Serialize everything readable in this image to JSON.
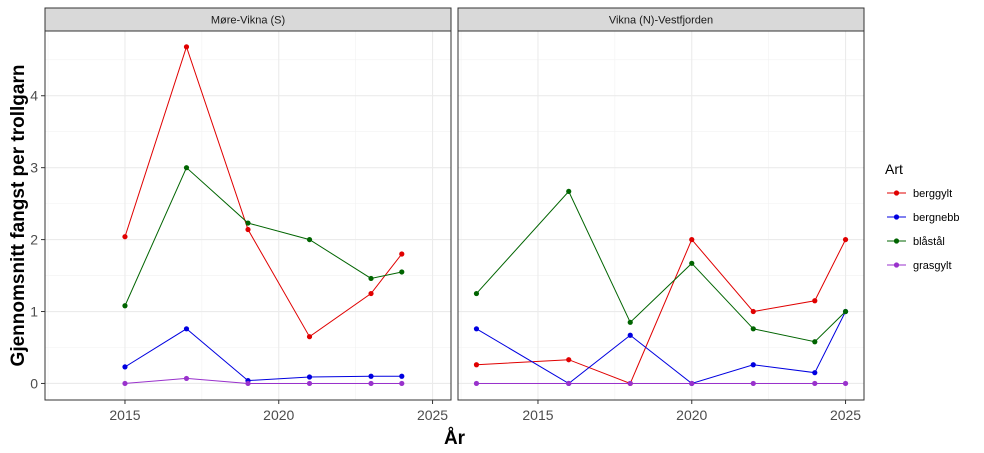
{
  "chart_data": {
    "type": "line",
    "facets": [
      {
        "title": "Møre-Vikna (S)",
        "series": [
          {
            "name": "berggylt",
            "color": "#e00000",
            "x": [
              2015,
              2017,
              2019,
              2021,
              2023,
              2024
            ],
            "y": [
              2.04,
              4.68,
              2.14,
              0.65,
              1.25,
              1.8
            ]
          },
          {
            "name": "bergnebb",
            "color": "#0000e0",
            "x": [
              2015,
              2017,
              2019,
              2021,
              2023,
              2024
            ],
            "y": [
              0.23,
              0.76,
              0.04,
              0.09,
              0.1,
              0.1
            ]
          },
          {
            "name": "blåstål",
            "color": "#006400",
            "x": [
              2015,
              2017,
              2019,
              2021,
              2023,
              2024
            ],
            "y": [
              1.08,
              3.0,
              2.23,
              2.0,
              1.46,
              1.55
            ]
          },
          {
            "name": "grasgylt",
            "color": "#9932cc",
            "x": [
              2015,
              2017,
              2019,
              2021,
              2023,
              2024
            ],
            "y": [
              0.0,
              0.07,
              0.0,
              0.0,
              0.0,
              0.0
            ]
          }
        ]
      },
      {
        "title": "Vikna (N)-Vestfjorden",
        "series": [
          {
            "name": "berggylt",
            "color": "#e00000",
            "x": [
              2013,
              2016,
              2018,
              2020,
              2022,
              2024,
              2025
            ],
            "y": [
              0.26,
              0.33,
              0.0,
              2.0,
              1.0,
              1.15,
              2.0
            ]
          },
          {
            "name": "bergnebb",
            "color": "#0000e0",
            "x": [
              2013,
              2016,
              2018,
              2020,
              2022,
              2024,
              2025
            ],
            "y": [
              0.76,
              0.0,
              0.67,
              0.0,
              0.26,
              0.15,
              1.0
            ]
          },
          {
            "name": "blåstål",
            "color": "#006400",
            "x": [
              2013,
              2016,
              2018,
              2020,
              2022,
              2024,
              2025
            ],
            "y": [
              1.25,
              2.67,
              0.85,
              1.67,
              0.76,
              0.58,
              1.0
            ]
          },
          {
            "name": "grasgylt",
            "color": "#9932cc",
            "x": [
              2013,
              2016,
              2018,
              2020,
              2022,
              2024,
              2025
            ],
            "y": [
              0.0,
              0.0,
              0.0,
              0.0,
              0.0,
              0.0,
              0.0
            ]
          }
        ]
      }
    ],
    "xlabel": "År",
    "ylabel": "Gjennomsnitt fangst per trollgarn",
    "xlim": [
      2012.4,
      2025.6
    ],
    "ylim": [
      -0.23,
      4.9
    ],
    "xticks": [
      2015,
      2020,
      2025
    ],
    "yticks": [
      0,
      1,
      2,
      3,
      4
    ],
    "legend_title": "Art",
    "legend_position": "right",
    "grid": true
  }
}
